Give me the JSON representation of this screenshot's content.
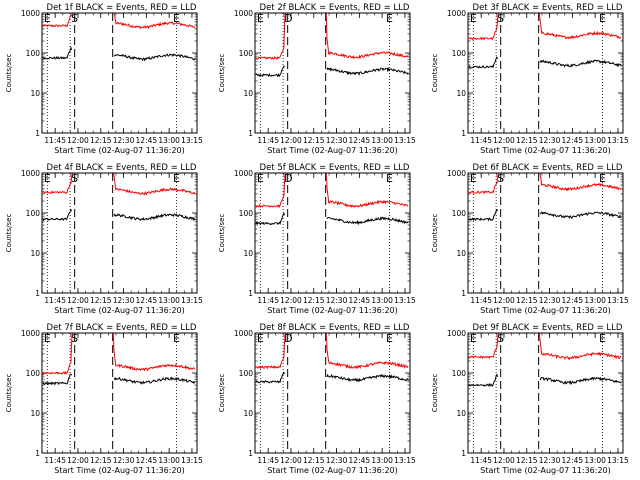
{
  "chart_data": {
    "type": "line",
    "ylabel": "Counts/sec",
    "xlabel": "Start Time (02-Aug-07 11:36:20)",
    "yscale": "log",
    "ylim": [
      1,
      1000
    ],
    "xlim_minutes_after_start": [
      0,
      102
    ],
    "xtick_labels": [
      "11:45",
      "12:00",
      "12:15",
      "12:30",
      "12:45",
      "13:00",
      "13:15"
    ],
    "ytick_labels": [
      "1",
      "10",
      "100",
      "1000"
    ],
    "colors": {
      "events": "#000000",
      "lld": "#ff0000"
    },
    "marker_labels": {
      "start": "E",
      "slew": "S",
      "slew_d": "D",
      "end": "E"
    },
    "panels": [
      {
        "title": "Det 1f BLACK = Events, RED = LLD",
        "slew_label": "S",
        "events_pre": 75,
        "events_post": 80,
        "lld_pre": 480,
        "lld_post": 500
      },
      {
        "title": "Det 2f BLACK = Events, RED = LLD",
        "slew_label": "D",
        "events_pre": 28,
        "events_post": 35,
        "lld_pre": 75,
        "lld_post": 90
      },
      {
        "title": "Det 3f BLACK = Events, RED = LLD",
        "slew_label": "S",
        "events_pre": 45,
        "events_post": 55,
        "lld_pre": 230,
        "lld_post": 280
      },
      {
        "title": "Det 4f BLACK = Events, RED = LLD",
        "slew_label": "S",
        "events_pre": 70,
        "events_post": 80,
        "lld_pre": 330,
        "lld_post": 350
      },
      {
        "title": "Det 5f BLACK = Events, RED = LLD",
        "slew_label": "D",
        "events_pre": 55,
        "events_post": 65,
        "lld_pre": 150,
        "lld_post": 170
      },
      {
        "title": "Det 6f BLACK = Events, RED = LLD",
        "slew_label": "S",
        "events_pre": 70,
        "events_post": 90,
        "lld_pre": 330,
        "lld_post": 450
      },
      {
        "title": "Det 7f BLACK = Events, RED = LLD",
        "slew_label": "S",
        "events_pre": 55,
        "events_post": 65,
        "lld_pre": 100,
        "lld_post": 140
      },
      {
        "title": "Det 8f BLACK = Events, RED = LLD",
        "slew_label": "D",
        "events_pre": 60,
        "events_post": 75,
        "lld_pre": 140,
        "lld_post": 160
      },
      {
        "title": "Det 9f BLACK = Events, RED = LLD",
        "slew_label": "S",
        "events_pre": 50,
        "events_post": 65,
        "lld_pre": 250,
        "lld_post": 270
      }
    ]
  }
}
